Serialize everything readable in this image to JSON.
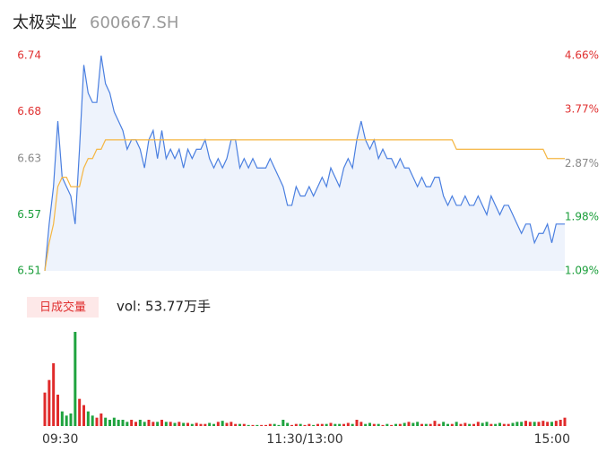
{
  "chart_data": {
    "type": "line",
    "title": "太极实业",
    "subtitle": "600667.SH",
    "categories": [
      "09:30",
      null,
      null,
      null,
      null,
      null,
      null,
      null,
      null,
      null,
      null,
      null,
      null,
      null,
      null,
      null,
      null,
      null,
      null,
      null,
      null,
      null,
      null,
      null,
      null,
      null,
      null,
      null,
      null,
      null,
      null,
      null,
      null,
      null,
      null,
      null,
      null,
      null,
      null,
      null,
      null,
      null,
      null,
      null,
      null,
      null,
      null,
      null,
      null,
      null,
      null,
      null,
      null,
      null,
      null,
      null,
      null,
      null,
      null,
      null,
      "11:30/13:00",
      null,
      null,
      null,
      null,
      null,
      null,
      null,
      null,
      null,
      null,
      null,
      null,
      null,
      null,
      null,
      null,
      null,
      null,
      null,
      null,
      null,
      null,
      null,
      null,
      null,
      null,
      null,
      null,
      null,
      null,
      null,
      null,
      null,
      null,
      null,
      null,
      null,
      null,
      null,
      null,
      null,
      null,
      null,
      null,
      null,
      null,
      null,
      null,
      null,
      null,
      null,
      null,
      null,
      null,
      null,
      null,
      null,
      null,
      null,
      "15:00"
    ],
    "series": [
      {
        "color": "#4a7fe0",
        "area_color": "#eef3fc",
        "values": [
          6.51,
          6.56,
          6.6,
          6.67,
          6.61,
          6.6,
          6.59,
          6.56,
          6.64,
          6.73,
          6.7,
          6.69,
          6.69,
          6.74,
          6.71,
          6.7,
          6.68,
          6.67,
          6.66,
          6.64,
          6.65,
          6.65,
          6.64,
          6.62,
          6.65,
          6.66,
          6.63,
          6.66,
          6.63,
          6.64,
          6.63,
          6.64,
          6.62,
          6.64,
          6.63,
          6.64,
          6.64,
          6.65,
          6.63,
          6.62,
          6.63,
          6.62,
          6.63,
          6.65,
          6.65,
          6.62,
          6.63,
          6.62,
          6.63,
          6.62,
          6.62,
          6.62,
          6.63,
          6.62,
          6.61,
          6.6,
          6.58,
          6.58,
          6.6,
          6.59,
          6.59,
          6.6,
          6.59,
          6.6,
          6.61,
          6.6,
          6.62,
          6.61,
          6.6,
          6.62,
          6.63,
          6.62,
          6.65,
          6.67,
          6.65,
          6.64,
          6.65,
          6.63,
          6.64,
          6.63,
          6.63,
          6.62,
          6.63,
          6.62,
          6.62,
          6.61,
          6.6,
          6.61,
          6.6,
          6.6,
          6.61,
          6.61,
          6.59,
          6.58,
          6.59,
          6.58,
          6.58,
          6.59,
          6.58,
          6.58,
          6.59,
          6.58,
          6.57,
          6.59,
          6.58,
          6.57,
          6.58,
          6.58,
          6.57,
          6.56,
          6.55,
          6.56,
          6.56,
          6.54,
          6.55,
          6.55,
          6.56,
          6.54,
          6.56,
          6.56,
          6.56
        ]
      },
      {
        "color": "#f5b642",
        "values": [
          6.51,
          6.54,
          6.56,
          6.6,
          6.61,
          6.61,
          6.6,
          6.6,
          6.6,
          6.62,
          6.63,
          6.63,
          6.64,
          6.64,
          6.65,
          6.65,
          6.65,
          6.65,
          6.65,
          6.65,
          6.65,
          6.65,
          6.65,
          6.65,
          6.65,
          6.65,
          6.65,
          6.65,
          6.65,
          6.65,
          6.65,
          6.65,
          6.65,
          6.65,
          6.65,
          6.65,
          6.65,
          6.65,
          6.65,
          6.65,
          6.65,
          6.65,
          6.65,
          6.65,
          6.65,
          6.65,
          6.65,
          6.65,
          6.65,
          6.65,
          6.65,
          6.65,
          6.65,
          6.65,
          6.65,
          6.65,
          6.65,
          6.65,
          6.65,
          6.65,
          6.65,
          6.65,
          6.65,
          6.65,
          6.65,
          6.65,
          6.65,
          6.65,
          6.65,
          6.65,
          6.65,
          6.65,
          6.65,
          6.65,
          6.65,
          6.65,
          6.65,
          6.65,
          6.65,
          6.65,
          6.65,
          6.65,
          6.65,
          6.65,
          6.65,
          6.65,
          6.65,
          6.65,
          6.65,
          6.65,
          6.65,
          6.65,
          6.65,
          6.65,
          6.65,
          6.64,
          6.64,
          6.64,
          6.64,
          6.64,
          6.64,
          6.64,
          6.64,
          6.64,
          6.64,
          6.64,
          6.64,
          6.64,
          6.64,
          6.64,
          6.64,
          6.64,
          6.64,
          6.64,
          6.64,
          6.64,
          6.63,
          6.63,
          6.63,
          6.63,
          6.63
        ]
      }
    ],
    "ylim": [
      6.51,
      6.74
    ],
    "yticks": [
      6.74,
      6.68,
      6.63,
      6.57,
      6.51
    ],
    "y2lim": [
      1.09,
      4.66
    ],
    "y2ticks": [
      {
        "value": 4.66,
        "label": "4.66%"
      },
      {
        "value": 3.77,
        "label": "3.77%"
      },
      {
        "value": 2.87,
        "label": "2.87%"
      },
      {
        "value": 1.98,
        "label": "1.98%"
      },
      {
        "value": 1.09,
        "label": "1.09%"
      }
    ],
    "tick_colors": [
      "#e03030",
      "#e03030",
      "#888888",
      "#1a9e3a",
      "#1a9e3a"
    ],
    "volume": {
      "label": "日成交量",
      "summary": "vol: 53.77万手",
      "up_color": "#e02b2b",
      "down_color": "#1fa33f",
      "values": [
        1.6,
        2.2,
        3.0,
        1.5,
        0.7,
        0.5,
        0.6,
        4.5,
        1.3,
        1.0,
        0.7,
        0.5,
        0.4,
        0.6,
        0.4,
        0.3,
        0.4,
        0.3,
        0.3,
        0.2,
        0.3,
        0.2,
        0.3,
        0.2,
        0.3,
        0.2,
        0.2,
        0.3,
        0.2,
        0.2,
        0.15,
        0.2,
        0.15,
        0.15,
        0.1,
        0.15,
        0.1,
        0.1,
        0.15,
        0.1,
        0.2,
        0.25,
        0.15,
        0.2,
        0.1,
        0.1,
        0.1,
        0.05,
        0.05,
        0.05,
        0.05,
        0.05,
        0.1,
        0.1,
        0.05,
        0.3,
        0.15,
        0.05,
        0.1,
        0.1,
        0.05,
        0.1,
        0.05,
        0.1,
        0.1,
        0.1,
        0.15,
        0.1,
        0.1,
        0.1,
        0.15,
        0.1,
        0.3,
        0.2,
        0.1,
        0.15,
        0.1,
        0.1,
        0.05,
        0.1,
        0.05,
        0.1,
        0.1,
        0.15,
        0.2,
        0.15,
        0.2,
        0.1,
        0.1,
        0.1,
        0.25,
        0.1,
        0.2,
        0.1,
        0.1,
        0.2,
        0.1,
        0.15,
        0.1,
        0.1,
        0.2,
        0.15,
        0.2,
        0.1,
        0.1,
        0.15,
        0.1,
        0.1,
        0.15,
        0.2,
        0.2,
        0.25,
        0.2,
        0.2,
        0.2,
        0.25,
        0.2,
        0.2,
        0.25,
        0.3,
        0.4
      ]
    }
  }
}
